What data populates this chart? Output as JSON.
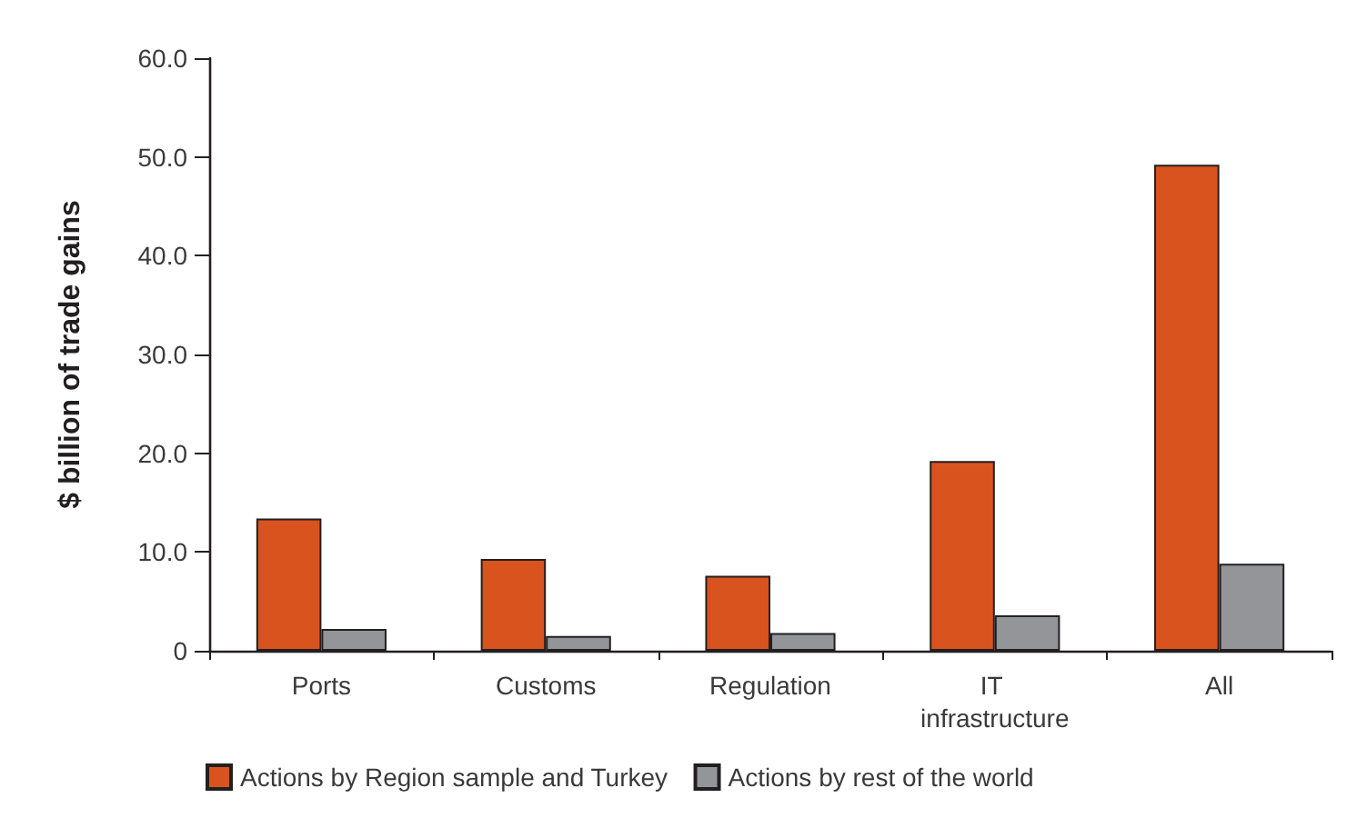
{
  "chart_data": {
    "type": "bar",
    "ylabel": "$ billion of trade gains",
    "categories": [
      "Ports",
      "Customs",
      "Regulation",
      "IT infrastructure",
      "All"
    ],
    "series": [
      {
        "name": "Actions by Region sample and Turkey",
        "color": "#d9531e",
        "values": [
          13.4,
          9.3,
          7.6,
          19.2,
          49.2
        ]
      },
      {
        "name": "Actions by rest of the world",
        "color": "#939598",
        "values": [
          2.2,
          1.5,
          1.8,
          3.6,
          8.8
        ]
      }
    ],
    "ylim": [
      0,
      60
    ],
    "yticks": [
      0,
      {
        "value": 10,
        "label": "10.0"
      },
      {
        "value": 20,
        "label": "20.0"
      },
      {
        "value": 30,
        "label": "30.0"
      },
      {
        "value": 40,
        "label": "40.0"
      },
      {
        "value": 50,
        "label": "50.0"
      },
      {
        "value": 60,
        "label": "60.0"
      }
    ],
    "grid": false,
    "legend": "bottom"
  }
}
